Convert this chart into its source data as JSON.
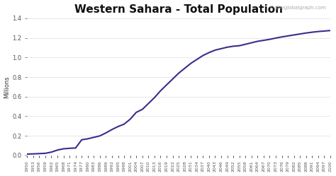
{
  "title": "Western Sahara - Total Population",
  "ylabel": "Millions",
  "watermark": "© theglobalgraph.com",
  "line_color": "#3d2b8e",
  "line_width": 1.5,
  "background_color": "#ffffff",
  "grid_color": "#dddddd",
  "ylim": [
    0,
    1.4
  ],
  "years": [
    1950,
    1953,
    1956,
    1959,
    1962,
    1965,
    1968,
    1971,
    1974,
    1977,
    1980,
    1983,
    1986,
    1989,
    1992,
    1995,
    1998,
    2001,
    2004,
    2007,
    2010,
    2013,
    2016,
    2019,
    2022,
    2025,
    2028,
    2031,
    2034,
    2037,
    2040,
    2043,
    2046,
    2049,
    2052,
    2055,
    2058,
    2061,
    2064,
    2067,
    2070,
    2073,
    2076,
    2079,
    2082,
    2085,
    2088,
    2091,
    2094,
    2097,
    2100
  ],
  "population": [
    0.014,
    0.016,
    0.019,
    0.022,
    0.034,
    0.055,
    0.068,
    0.073,
    0.076,
    0.16,
    0.17,
    0.185,
    0.2,
    0.23,
    0.265,
    0.295,
    0.32,
    0.37,
    0.44,
    0.47,
    0.53,
    0.59,
    0.66,
    0.72,
    0.78,
    0.84,
    0.89,
    0.94,
    0.98,
    1.02,
    1.05,
    1.075,
    1.09,
    1.105,
    1.115,
    1.12,
    1.135,
    1.15,
    1.165,
    1.175,
    1.185,
    1.198,
    1.21,
    1.22,
    1.23,
    1.24,
    1.25,
    1.258,
    1.265,
    1.27,
    1.275
  ],
  "xtick_years": [
    1950,
    1953,
    1956,
    1959,
    1962,
    1965,
    1968,
    1971,
    1974,
    1977,
    1980,
    1983,
    1986,
    1989,
    1992,
    1995,
    1998,
    2001,
    2004,
    2007,
    2010,
    2013,
    2016,
    2019,
    2022,
    2025,
    2028,
    2031,
    2034,
    2037,
    2040,
    2043,
    2046,
    2049,
    2052,
    2055,
    2058,
    2061,
    2064,
    2067,
    2070,
    2073,
    2076,
    2079,
    2082,
    2085,
    2088,
    2091,
    2094,
    2097,
    2100
  ],
  "yticks": [
    0,
    0.2,
    0.4,
    0.6,
    0.8,
    1.0,
    1.2,
    1.4
  ]
}
